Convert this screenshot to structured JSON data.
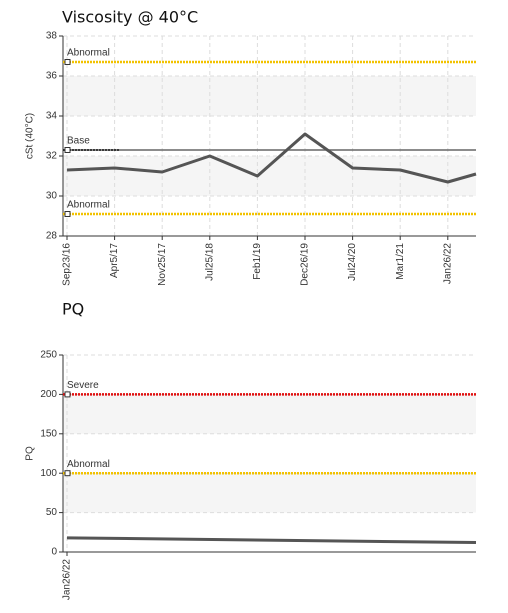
{
  "chart_data": [
    {
      "type": "line",
      "title": "Viscosity @ 40°C",
      "ylabel": "cSt (40°C)",
      "categories": [
        "Sep23/16",
        "Apr5/17",
        "Nov25/17",
        "Jul25/18",
        "Feb1/19",
        "Dec26/19",
        "Jul24/20",
        "Mar1/21",
        "Jan26/22",
        null
      ],
      "values": [
        31.3,
        31.4,
        31.2,
        32.0,
        31.0,
        33.1,
        31.4,
        31.3,
        30.7,
        31.1
      ],
      "color": "#555555",
      "ylim": [
        28,
        38
      ],
      "yticks": [
        28,
        30,
        32,
        34,
        36,
        38
      ],
      "grid": true,
      "thresholds": [
        {
          "label": "Abnormal",
          "value": 36.7,
          "color": "#f2c200"
        },
        {
          "label": "Abnormal",
          "value": 29.1,
          "color": "#f2c200"
        }
      ],
      "base": {
        "label": "Base",
        "value": 32.3
      }
    },
    {
      "type": "line",
      "title": "PQ",
      "ylabel": "PQ",
      "categories": [
        "Jan26/22",
        null
      ],
      "values": [
        18,
        12
      ],
      "color": "#555555",
      "ylim": [
        0,
        250
      ],
      "yticks": [
        0,
        50,
        100,
        150,
        200,
        250
      ],
      "grid": true,
      "thresholds": [
        {
          "label": "Severe",
          "value": 200,
          "color": "#e01010"
        },
        {
          "label": "Abnormal",
          "value": 100,
          "color": "#f2c200"
        }
      ]
    }
  ]
}
